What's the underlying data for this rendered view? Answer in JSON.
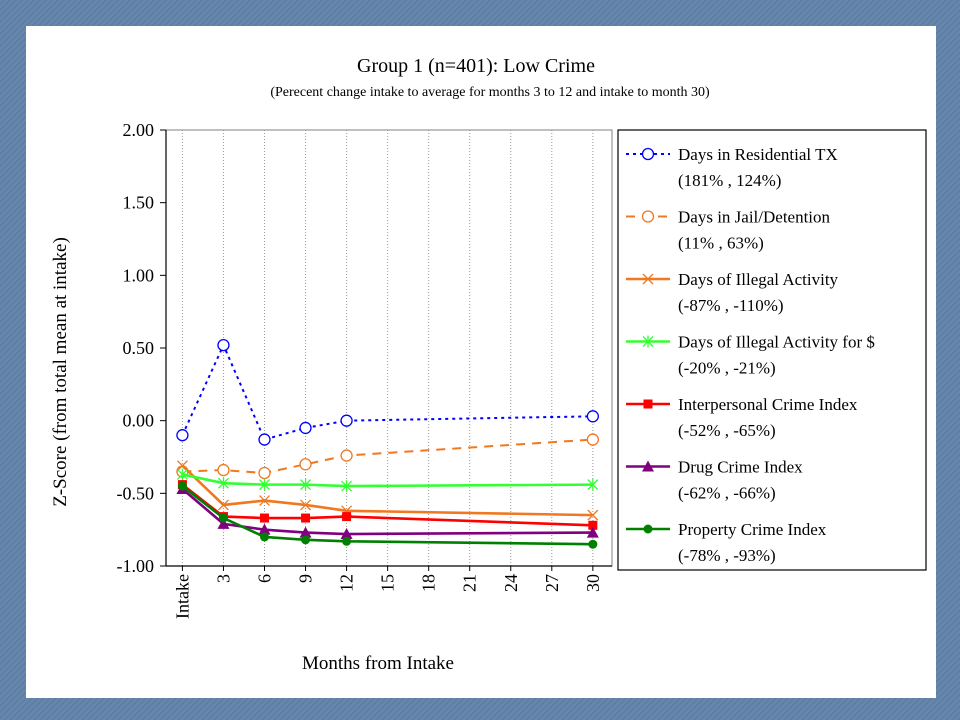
{
  "chart_data": {
    "type": "line",
    "title": "Group 1 (n=401): Low Crime",
    "subtitle": "(Perecent change intake to average for months 3 to 12 and intake to month 30)",
    "xlabel": "Months from Intake",
    "ylabel": "Z-Score (from total mean at intake)",
    "ylim": [
      -1.0,
      2.0
    ],
    "yticks": [
      "-1.00",
      "-0.50",
      "0.00",
      "0.50",
      "1.00",
      "1.50",
      "2.00"
    ],
    "ytick_values": [
      -1.0,
      -0.5,
      0.0,
      0.5,
      1.0,
      1.5,
      2.0
    ],
    "x_categories": [
      "Intake",
      "3",
      "6",
      "9",
      "12",
      "15",
      "18",
      "21",
      "24",
      "27",
      "30"
    ],
    "x_values": [
      0,
      3,
      6,
      9,
      12,
      15,
      18,
      21,
      24,
      27,
      30
    ],
    "grid": "vertical-dotted",
    "legend_position": "right",
    "series": [
      {
        "name": "Days in Residential TX",
        "detail": "(181% , 124%)",
        "color": "#0000ff",
        "dash": "dotted",
        "marker": "open-circle",
        "x": [
          0,
          3,
          6,
          9,
          12,
          30
        ],
        "y": [
          -0.1,
          0.52,
          -0.13,
          -0.05,
          0.0,
          0.03
        ]
      },
      {
        "name": "Days in Jail/Detention",
        "detail": "(11% , 63%)",
        "color": "#f07820",
        "dash": "dashed",
        "marker": "open-circle",
        "x": [
          0,
          3,
          6,
          9,
          12,
          30
        ],
        "y": [
          -0.35,
          -0.34,
          -0.36,
          -0.3,
          -0.24,
          -0.13
        ]
      },
      {
        "name": "Days of Illegal Activity",
        "detail": "(-87% , -110%)",
        "color": "#f07820",
        "dash": "solid",
        "marker": "x",
        "x": [
          0,
          3,
          6,
          9,
          12,
          30
        ],
        "y": [
          -0.31,
          -0.58,
          -0.55,
          -0.58,
          -0.62,
          -0.65
        ]
      },
      {
        "name": "Days of Illegal Activity for $",
        "detail": "(-20% , -21%)",
        "color": "#33ff33",
        "dash": "solid",
        "marker": "asterisk",
        "x": [
          0,
          3,
          6,
          9,
          12,
          30
        ],
        "y": [
          -0.37,
          -0.43,
          -0.44,
          -0.44,
          -0.45,
          -0.44
        ]
      },
      {
        "name": "Interpersonal Crime Index",
        "detail": "(-52% , -65%)",
        "color": "#ff0000",
        "dash": "solid",
        "marker": "square",
        "x": [
          0,
          3,
          6,
          9,
          12,
          30
        ],
        "y": [
          -0.44,
          -0.66,
          -0.67,
          -0.67,
          -0.66,
          -0.72
        ]
      },
      {
        "name": "Drug Crime Index",
        "detail": "(-62% , -66%)",
        "color": "#800080",
        "dash": "solid",
        "marker": "triangle",
        "x": [
          0,
          3,
          6,
          9,
          12,
          30
        ],
        "y": [
          -0.47,
          -0.71,
          -0.75,
          -0.77,
          -0.78,
          -0.77
        ]
      },
      {
        "name": "Property Crime Index",
        "detail": "(-78% , -93%)",
        "color": "#008000",
        "dash": "solid",
        "marker": "diamond",
        "x": [
          0,
          3,
          6,
          9,
          12,
          30
        ],
        "y": [
          -0.45,
          -0.67,
          -0.8,
          -0.82,
          -0.83,
          -0.85
        ]
      }
    ]
  }
}
